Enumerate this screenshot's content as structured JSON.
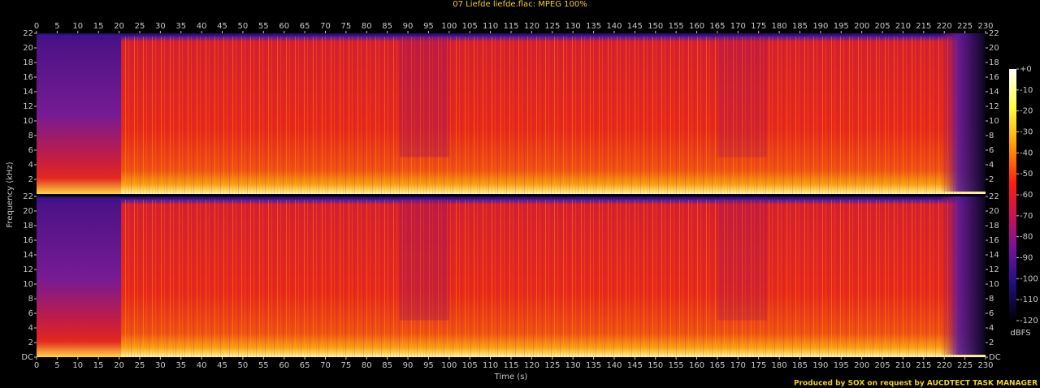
{
  "chart_data": {
    "type": "spectrogram",
    "title": "07 Liefde liefde.flac: MPEG 100%",
    "x_label": "Time (s)",
    "y_label": "Frequency (kHz)",
    "footer": "Produced by SOX on request by AUCDTECT TASK MANAGER",
    "xlim": [
      0,
      230
    ],
    "xticks": [
      0,
      5,
      10,
      15,
      20,
      25,
      30,
      35,
      40,
      45,
      50,
      55,
      60,
      65,
      70,
      75,
      80,
      85,
      90,
      95,
      100,
      105,
      110,
      115,
      120,
      125,
      130,
      135,
      140,
      145,
      150,
      155,
      160,
      165,
      170,
      175,
      180,
      185,
      190,
      195,
      200,
      205,
      210,
      215,
      220,
      225,
      230
    ],
    "ylim": [
      0,
      22
    ],
    "yticks": [
      {
        "value": 0,
        "label": "DC"
      },
      2,
      4,
      6,
      8,
      10,
      12,
      14,
      16,
      18,
      20,
      22
    ],
    "colorbar": {
      "label": "dBFS",
      "lim": [
        -120,
        0
      ],
      "ticks": [
        {
          "value": 0,
          "label": "+0"
        },
        -10,
        -20,
        -30,
        -40,
        -50,
        -60,
        -70,
        -80,
        -90,
        -100,
        -110,
        -120
      ]
    }
  }
}
